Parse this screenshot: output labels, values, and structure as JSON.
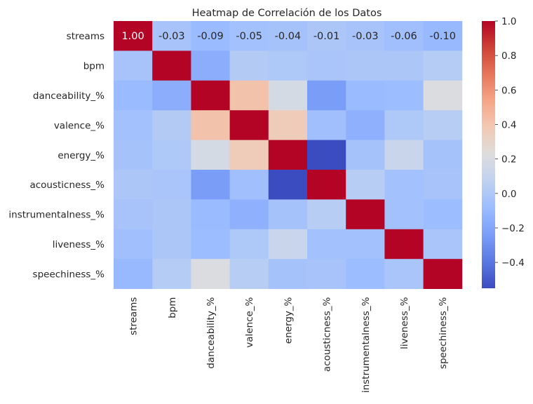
{
  "chart_data": {
    "type": "heatmap",
    "title": "Heatmap de Correlación de los Datos",
    "xlabel": "",
    "ylabel": "",
    "labels": [
      "streams",
      "bpm",
      "danceability_%",
      "valence_%",
      "energy_%",
      "acousticness_%",
      "instrumentalness_%",
      "liveness_%",
      "speechiness_%"
    ],
    "matrix": [
      [
        1.0,
        -0.03,
        -0.09,
        -0.05,
        -0.04,
        -0.01,
        -0.03,
        -0.06,
        -0.1
      ],
      [
        -0.03,
        1.0,
        -0.16,
        0.02,
        0.0,
        -0.02,
        -0.01,
        -0.01,
        0.03
      ],
      [
        -0.09,
        -0.16,
        1.0,
        0.41,
        0.18,
        -0.24,
        -0.09,
        -0.08,
        0.21
      ],
      [
        -0.05,
        0.02,
        0.41,
        1.0,
        0.36,
        -0.06,
        -0.14,
        0.0,
        0.04
      ],
      [
        -0.04,
        0.0,
        0.18,
        0.36,
        1.0,
        -0.55,
        -0.04,
        0.12,
        -0.04
      ],
      [
        -0.01,
        -0.02,
        -0.24,
        -0.06,
        -0.55,
        1.0,
        0.04,
        -0.05,
        -0.03
      ],
      [
        -0.03,
        -0.01,
        -0.09,
        -0.14,
        -0.04,
        0.04,
        1.0,
        -0.05,
        -0.08
      ],
      [
        -0.06,
        -0.01,
        -0.08,
        0.0,
        0.12,
        -0.05,
        -0.05,
        1.0,
        -0.02
      ],
      [
        -0.1,
        0.03,
        0.21,
        0.04,
        -0.04,
        -0.03,
        -0.08,
        -0.02,
        1.0
      ]
    ],
    "annotated_row": 0,
    "annotations": [
      "1.00",
      "-0.03",
      "-0.09",
      "-0.05",
      "-0.04",
      "-0.01",
      "-0.03",
      "-0.06",
      "-0.10"
    ],
    "colormap": "coolwarm",
    "vmin": -0.55,
    "vmax": 1.0,
    "colorbar_ticks": [
      1.0,
      0.8,
      0.6,
      0.4,
      0.2,
      0.0,
      -0.2,
      -0.4
    ],
    "colorbar_tick_labels": [
      "1.0",
      "0.8",
      "0.6",
      "0.4",
      "0.2",
      "0.0",
      "−0.2",
      "−0.4"
    ],
    "grid": false,
    "legend": "colorbar-right"
  }
}
